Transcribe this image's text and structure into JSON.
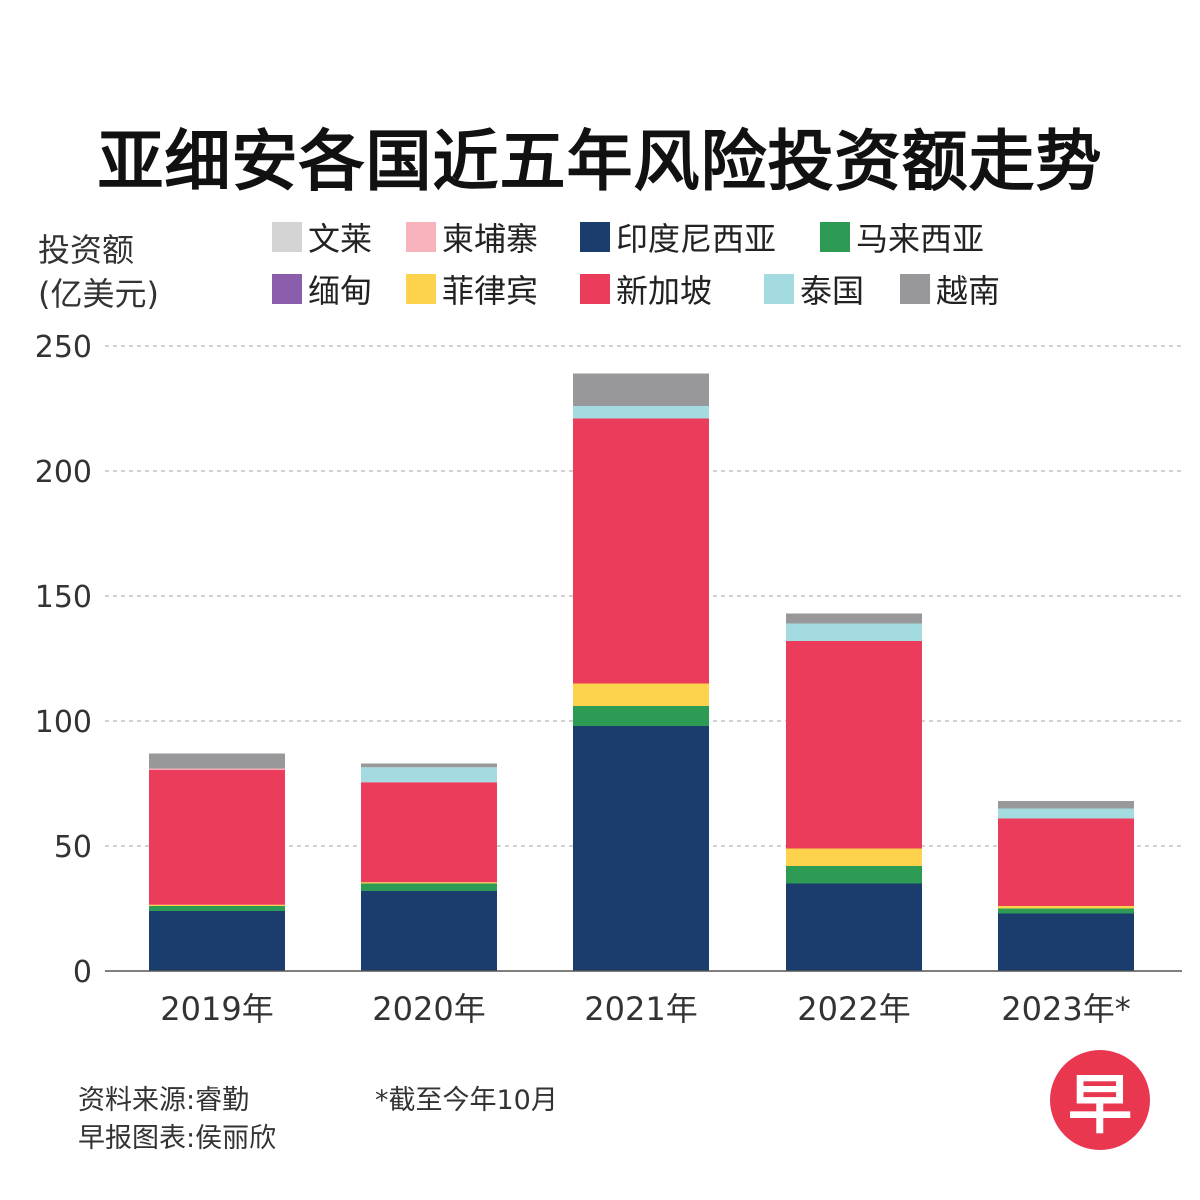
{
  "title": "亚细安各国近五年风险投资额走势",
  "y_unit": [
    "投资额",
    "(亿美元)"
  ],
  "footer": {
    "source": "资料来源:睿勤",
    "credit": "早报图表:侯丽欣",
    "note": "*截至今年10月"
  },
  "logo_text": "早",
  "chart_data": {
    "type": "bar",
    "stacked": true,
    "title": "亚细安各国近五年风险投资额走势",
    "ylabel": "投资额(亿美元)",
    "ylim": [
      0,
      250
    ],
    "yticks": [
      0,
      50,
      100,
      150,
      200,
      250
    ],
    "grid": true,
    "legend_position": "top",
    "categories": [
      "2019年",
      "2020年",
      "2021年",
      "2022年",
      "2023年*"
    ],
    "series": [
      {
        "name": "印度尼西亚",
        "color": "#1b3d6d",
        "values": [
          24,
          32,
          98,
          35,
          23
        ]
      },
      {
        "name": "马来西亚",
        "color": "#2e9b55",
        "values": [
          2,
          3,
          8,
          7,
          2
        ]
      },
      {
        "name": "菲律宾",
        "color": "#fdd24c",
        "values": [
          0.5,
          0.5,
          9,
          7,
          1
        ]
      },
      {
        "name": "新加坡",
        "color": "#ec3c5c",
        "values": [
          54,
          40,
          106,
          83,
          35
        ]
      },
      {
        "name": "缅甸",
        "color": "#8a5eab",
        "values": [
          0,
          0,
          0,
          0,
          0
        ]
      },
      {
        "name": "文莱",
        "color": "#d4d4d4",
        "values": [
          0,
          0,
          0,
          0,
          0
        ]
      },
      {
        "name": "柬埔寨",
        "color": "#f7b2bc",
        "values": [
          0.5,
          0,
          0,
          0,
          0
        ]
      },
      {
        "name": "泰国",
        "color": "#a4dbe0",
        "values": [
          0,
          6,
          5,
          7,
          4
        ]
      },
      {
        "name": "越南",
        "color": "#98989a",
        "values": [
          6,
          1.5,
          13,
          4,
          3
        ]
      }
    ],
    "legend_order": [
      "文莱",
      "柬埔寨",
      "印度尼西亚",
      "马来西亚",
      "缅甸",
      "菲律宾",
      "新加坡",
      "泰国",
      "越南"
    ]
  }
}
